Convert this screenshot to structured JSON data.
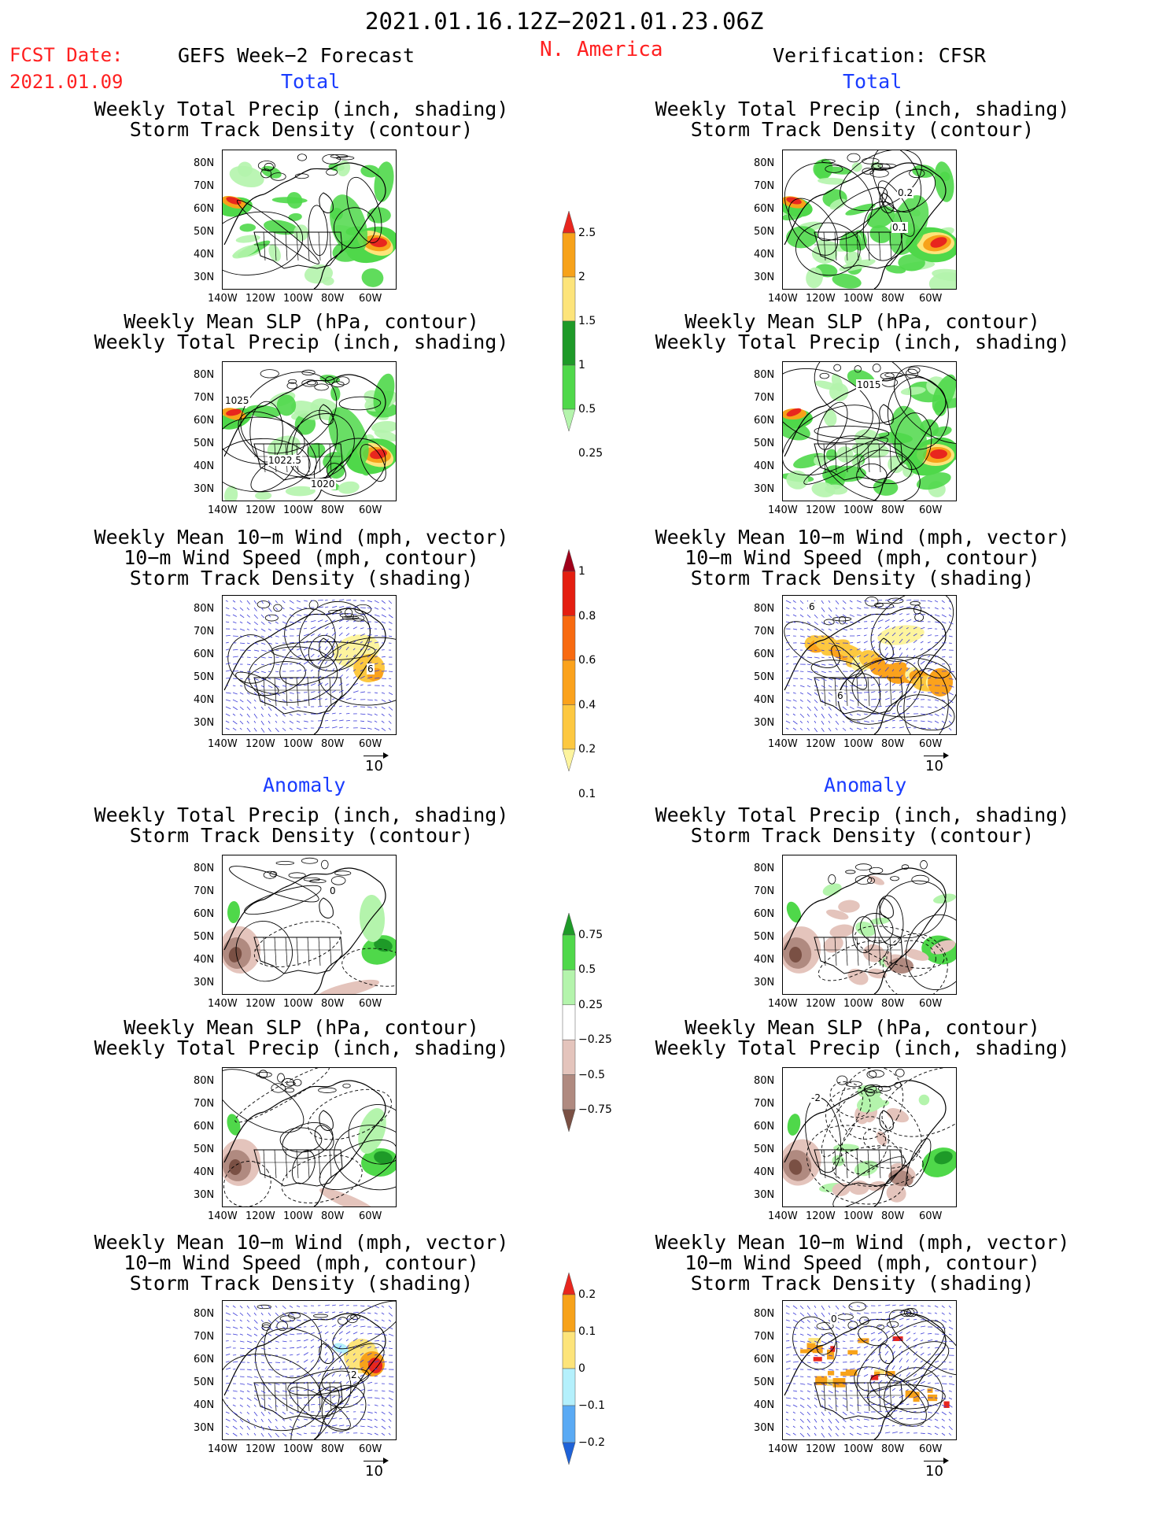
{
  "header": {
    "date_range": "2021.01.16.12Z−2021.01.23.06Z",
    "fcst_label": "FCST Date:",
    "fcst_date": "2021.01.09",
    "left_title": "GEFS Week−2 Forecast",
    "region": "N. America",
    "right_title": "Verification: CFSR"
  },
  "sections": {
    "total": "Total",
    "anomaly": "Anomaly"
  },
  "panel_titles": {
    "precip_storm": [
      "Weekly Total Precip (inch, shading)",
      "Storm Track Density (contour)"
    ],
    "slp_precip": [
      "Weekly Mean SLP (hPa, contour)",
      "Weekly Total Precip (inch, shading)"
    ],
    "wind_storm": [
      "Weekly Mean 10−m Wind (mph, vector)",
      "10−m Wind Speed (mph, contour)",
      "Storm Track Density (shading)"
    ]
  },
  "axes": {
    "lat_labels": [
      "80N",
      "70N",
      "60N",
      "50N",
      "40N",
      "30N"
    ],
    "lon_labels": [
      "140W",
      "120W",
      "100W",
      "80W",
      "60W"
    ],
    "ref_vector": "10"
  },
  "contour_labels": {
    "obs_storm": [
      "0.2",
      "0.1"
    ],
    "fcst_slp": [
      "1025",
      "1022.5",
      "1020"
    ],
    "obs_slp": [
      "1015"
    ],
    "fcst_wind": [
      "6"
    ],
    "obs_wind": [
      "6",
      "6"
    ],
    "fcst_anom_precip": [
      "0"
    ],
    "obs_anom_slp": [
      "-2"
    ],
    "fcst_anom_wind": [
      "2"
    ],
    "obs_anom_wind": [
      "0"
    ]
  },
  "colorbars": [
    {
      "name": "total-precip",
      "ticks": [
        "2.5",
        "2",
        "1.5",
        "1",
        "0.5",
        "0.25"
      ],
      "colors": [
        "#e8261e",
        "#f7a21a",
        "#fde47a",
        "#1e9a28",
        "#4fd84a",
        "#b4f4ac"
      ]
    },
    {
      "name": "total-storm-density",
      "ticks": [
        "1",
        "0.8",
        "0.6",
        "0.4",
        "0.2",
        "0.1"
      ],
      "colors": [
        "#a0001a",
        "#e41e10",
        "#f86a10",
        "#fba21c",
        "#fdc840",
        "#fdf49e"
      ]
    },
    {
      "name": "anom-precip",
      "ticks": [
        "0.75",
        "0.5",
        "0.25",
        "−0.25",
        "−0.5",
        "−0.75"
      ],
      "colors": [
        "#1e9a28",
        "#4fd84a",
        "#b4f4ac",
        "#ffffff",
        "#e4c4bc",
        "#b08a80",
        "#7a5044"
      ]
    },
    {
      "name": "anom-storm-density",
      "ticks": [
        "0.2",
        "0.1",
        "0",
        "−0.1",
        "−0.2"
      ],
      "colors": [
        "#e8261e",
        "#f7a21a",
        "#fde47a",
        "#b4f0fc",
        "#5aaaf4",
        "#1e62d8"
      ]
    }
  ],
  "chart_data": {
    "type": "heatmap",
    "title": "2021.01.16.12Z−2021.01.23.06Z",
    "region": "N. America",
    "lat_range": [
      "30N",
      "80N"
    ],
    "lon_range": [
      "140W",
      "60W"
    ],
    "panels": [
      {
        "column": "GEFS Week−2 Forecast",
        "section": "Total",
        "row": 1,
        "fields": [
          "Weekly Total Precip (inch, shading)",
          "Storm Track Density (contour)"
        ]
      },
      {
        "column": "Verification: CFSR",
        "section": "Total",
        "row": 1,
        "fields": [
          "Weekly Total Precip (inch, shading)",
          "Storm Track Density (contour)"
        ]
      },
      {
        "column": "GEFS Week−2 Forecast",
        "section": "Total",
        "row": 2,
        "fields": [
          "Weekly Mean SLP (hPa, contour)",
          "Weekly Total Precip (inch, shading)"
        ]
      },
      {
        "column": "Verification: CFSR",
        "section": "Total",
        "row": 2,
        "fields": [
          "Weekly Mean SLP (hPa, contour)",
          "Weekly Total Precip (inch, shading)"
        ]
      },
      {
        "column": "GEFS Week−2 Forecast",
        "section": "Total",
        "row": 3,
        "fields": [
          "Weekly Mean 10−m Wind (mph, vector)",
          "10−m Wind Speed (mph, contour)",
          "Storm Track Density (shading)"
        ]
      },
      {
        "column": "Verification: CFSR",
        "section": "Total",
        "row": 3,
        "fields": [
          "Weekly Mean 10−m Wind (mph, vector)",
          "10−m Wind Speed (mph, contour)",
          "Storm Track Density (shading)"
        ]
      },
      {
        "column": "GEFS Week−2 Forecast",
        "section": "Anomaly",
        "row": 4,
        "fields": [
          "Weekly Total Precip (inch, shading)",
          "Storm Track Density (contour)"
        ]
      },
      {
        "column": "Verification: CFSR",
        "section": "Anomaly",
        "row": 4,
        "fields": [
          "Weekly Total Precip (inch, shading)",
          "Storm Track Density (contour)"
        ]
      },
      {
        "column": "GEFS Week−2 Forecast",
        "section": "Anomaly",
        "row": 5,
        "fields": [
          "Weekly Mean SLP (hPa, contour)",
          "Weekly Total Precip (inch, shading)"
        ]
      },
      {
        "column": "Verification: CFSR",
        "section": "Anomaly",
        "row": 5,
        "fields": [
          "Weekly Mean SLP (hPa, contour)",
          "Weekly Total Precip (inch, shading)"
        ]
      },
      {
        "column": "GEFS Week−2 Forecast",
        "section": "Anomaly",
        "row": 6,
        "fields": [
          "Weekly Mean 10−m Wind (mph, vector)",
          "10−m Wind Speed (mph, contour)",
          "Storm Track Density (shading)"
        ]
      },
      {
        "column": "Verification: CFSR",
        "section": "Anomaly",
        "row": 6,
        "fields": [
          "Weekly Mean 10−m Wind (mph, vector)",
          "10−m Wind Speed (mph, contour)",
          "Storm Track Density (shading)"
        ]
      }
    ]
  }
}
